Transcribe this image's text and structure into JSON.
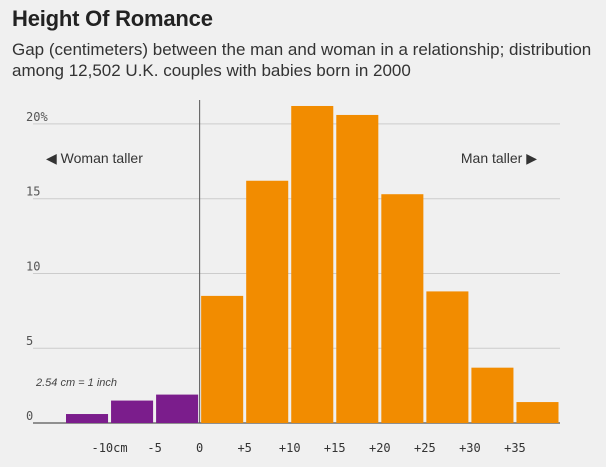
{
  "chart_data": {
    "type": "bar",
    "title": "Height Of Romance",
    "subtitle": "Gap (centimeters) between the man and woman in a relationship; distribution among 12,502 U.K. couples with babies born in 2000",
    "x_tick_labels": [
      "-10cm",
      "-5",
      "0",
      "+5",
      "+10",
      "+15",
      "+20",
      "+25",
      "+30",
      "+35"
    ],
    "x_tick_values": [
      -10,
      -5,
      0,
      5,
      10,
      15,
      20,
      25,
      30,
      35
    ],
    "y_tick_labels": [
      "20%",
      "15",
      "10",
      "5",
      "0"
    ],
    "y_tick_values": [
      20,
      15,
      10,
      5,
      0
    ],
    "ylim": [
      0,
      21.6
    ],
    "xlim": [
      -15.5,
      40
    ],
    "bins": [
      {
        "start": -15,
        "end": -10,
        "value": 0.6,
        "group": "woman_taller"
      },
      {
        "start": -10,
        "end": -5,
        "value": 1.5,
        "group": "woman_taller"
      },
      {
        "start": -5,
        "end": 0,
        "value": 1.9,
        "group": "woman_taller"
      },
      {
        "start": 0,
        "end": 5,
        "value": 8.5,
        "group": "man_taller"
      },
      {
        "start": 5,
        "end": 10,
        "value": 16.2,
        "group": "man_taller"
      },
      {
        "start": 10,
        "end": 15,
        "value": 21.2,
        "group": "man_taller"
      },
      {
        "start": 15,
        "end": 20,
        "value": 20.6,
        "group": "man_taller"
      },
      {
        "start": 20,
        "end": 25,
        "value": 15.3,
        "group": "man_taller"
      },
      {
        "start": 25,
        "end": 30,
        "value": 8.8,
        "group": "man_taller"
      },
      {
        "start": 30,
        "end": 35,
        "value": 3.7,
        "group": "man_taller"
      },
      {
        "start": 35,
        "end": 40,
        "value": 1.4,
        "group": "man_taller"
      }
    ],
    "colors": {
      "woman_taller": "#7b1d8c",
      "man_taller": "#f28c00",
      "gridline": "#cccccc",
      "baseline": "#555555"
    },
    "annotations": {
      "woman_taller": "◀ Woman taller",
      "man_taller": "Man taller ▶",
      "conversion_note": "2.54 cm = 1 inch"
    }
  }
}
